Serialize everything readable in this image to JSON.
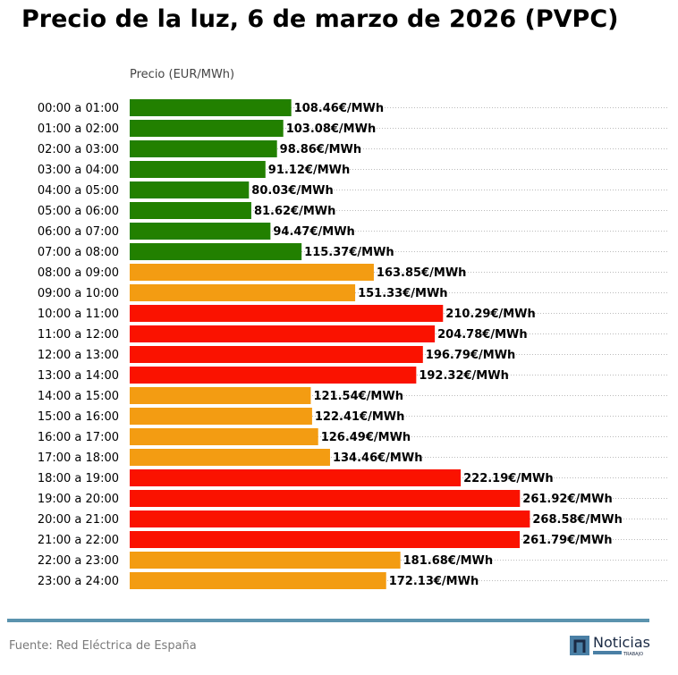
{
  "title": "Precio de la luz, 6 de marzo de 2026 (PVPC)",
  "source": "Fuente: Red Eléctrica de España",
  "logo": {
    "text": "Noticias",
    "subtext": "TRABAJO"
  },
  "colors": {
    "low": "#228000",
    "mid": "#f39c12",
    "high": "#fa1200",
    "grid": "#bbbbbb",
    "rule": "#5b93ae"
  },
  "chart_data": {
    "type": "bar",
    "orientation": "horizontal",
    "title": "Precio de la luz, 6 de marzo de 2026 (PVPC)",
    "xlabel": "Precio (EUR/MWh)",
    "xlim": [
      0,
      362
    ],
    "grid": "horizontal dotted",
    "value_suffix": "€/MWh",
    "categories": [
      "00:00 a 01:00",
      "01:00 a 02:00",
      "02:00 a 03:00",
      "03:00 a 04:00",
      "04:00 a 05:00",
      "05:00 a 06:00",
      "06:00 a 07:00",
      "07:00 a 08:00",
      "08:00 a 09:00",
      "09:00 a 10:00",
      "10:00 a 11:00",
      "11:00 a 12:00",
      "12:00 a 13:00",
      "13:00 a 14:00",
      "14:00 a 15:00",
      "15:00 a 16:00",
      "16:00 a 17:00",
      "17:00 a 18:00",
      "18:00 a 19:00",
      "19:00 a 20:00",
      "20:00 a 21:00",
      "21:00 a 22:00",
      "22:00 a 23:00",
      "23:00 a 24:00"
    ],
    "values": [
      108.46,
      103.08,
      98.86,
      91.12,
      80.03,
      81.62,
      94.47,
      115.37,
      163.85,
      151.33,
      210.29,
      204.78,
      196.79,
      192.32,
      121.54,
      122.41,
      126.49,
      134.46,
      222.19,
      261.92,
      268.58,
      261.79,
      181.68,
      172.13
    ],
    "levels": [
      "low",
      "low",
      "low",
      "low",
      "low",
      "low",
      "low",
      "low",
      "mid",
      "mid",
      "high",
      "high",
      "high",
      "high",
      "mid",
      "mid",
      "mid",
      "mid",
      "high",
      "high",
      "high",
      "high",
      "mid",
      "mid"
    ]
  }
}
